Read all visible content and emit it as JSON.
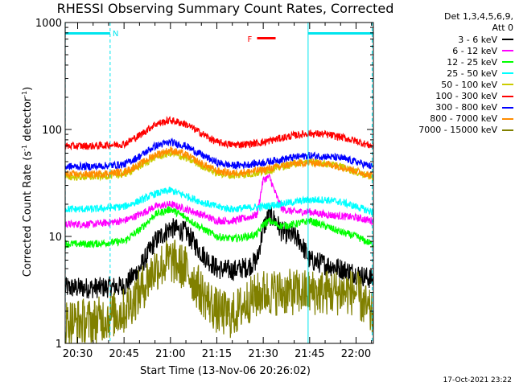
{
  "chart_data": {
    "type": "line",
    "title": "RHESSI Observing Summary Count Rates, Corrected",
    "xlabel": "Start Time (13-Nov-06 20:26:02)",
    "ylabel_main": "Corrected Count Rate (s",
    "ylabel_sup1": "-1",
    "ylabel_mid": " detector",
    "ylabel_sup2": "-1",
    "ylabel_end": ")",
    "yscale": "log",
    "ylim": [
      1,
      1000
    ],
    "xlim_minutes": [
      -4.03,
      95.6
    ],
    "x_ticks": [
      {
        "label": "20:30",
        "m": 0
      },
      {
        "label": "20:45",
        "m": 15
      },
      {
        "label": "21:00",
        "m": 30
      },
      {
        "label": "21:15",
        "m": 45
      },
      {
        "label": "21:30",
        "m": 60
      },
      {
        "label": "21:45",
        "m": 75
      },
      {
        "label": "22:00",
        "m": 90
      }
    ],
    "y_ticks": [
      {
        "label": "1",
        "v": 1
      },
      {
        "label": "10",
        "v": 10
      },
      {
        "label": "100",
        "v": 100
      },
      {
        "label": "1000",
        "v": 1000
      }
    ],
    "legend": {
      "header1": "Det 1,3,4,5,6,9,",
      "header2": "Att 0"
    },
    "series": [
      {
        "name": "3 - 6 keV",
        "color": "#000000",
        "points": [
          [
            -4,
            3.3
          ],
          [
            5,
            3.3
          ],
          [
            15,
            3.4
          ],
          [
            20,
            5
          ],
          [
            25,
            9
          ],
          [
            30,
            12
          ],
          [
            35,
            11
          ],
          [
            40,
            7
          ],
          [
            45,
            5
          ],
          [
            50,
            4.8
          ],
          [
            55,
            5.2
          ],
          [
            58,
            6
          ],
          [
            60,
            12
          ],
          [
            62,
            16
          ],
          [
            64,
            14
          ],
          [
            66,
            11
          ],
          [
            70,
            10
          ],
          [
            72,
            9
          ],
          [
            75,
            6
          ],
          [
            80,
            5.5
          ],
          [
            85,
            5
          ],
          [
            90,
            4.5
          ],
          [
            95,
            4
          ]
        ]
      },
      {
        "name": "6 - 12 keV",
        "color": "#ff00ff",
        "points": [
          [
            -4,
            13
          ],
          [
            5,
            13
          ],
          [
            15,
            14
          ],
          [
            20,
            16
          ],
          [
            25,
            19
          ],
          [
            30,
            20
          ],
          [
            35,
            18
          ],
          [
            40,
            16
          ],
          [
            45,
            14
          ],
          [
            50,
            14
          ],
          [
            55,
            15
          ],
          [
            58,
            16
          ],
          [
            60,
            34
          ],
          [
            62,
            36
          ],
          [
            64,
            25
          ],
          [
            66,
            18
          ],
          [
            70,
            17
          ],
          [
            75,
            17
          ],
          [
            80,
            16
          ],
          [
            85,
            15.5
          ],
          [
            90,
            15
          ],
          [
            95,
            14
          ]
        ]
      },
      {
        "name": "12 - 25 keV",
        "color": "#00ff00",
        "points": [
          [
            -4,
            8.5
          ],
          [
            5,
            8.5
          ],
          [
            15,
            9
          ],
          [
            20,
            11.5
          ],
          [
            25,
            16
          ],
          [
            30,
            18
          ],
          [
            35,
            15
          ],
          [
            40,
            12
          ],
          [
            45,
            10
          ],
          [
            50,
            9.5
          ],
          [
            55,
            10
          ],
          [
            58,
            10.5
          ],
          [
            60,
            13
          ],
          [
            62,
            14
          ],
          [
            64,
            13
          ],
          [
            66,
            12.5
          ],
          [
            70,
            13
          ],
          [
            75,
            14
          ],
          [
            80,
            12.5
          ],
          [
            85,
            11
          ],
          [
            90,
            10
          ],
          [
            95,
            8.5
          ]
        ]
      },
      {
        "name": "25 - 50 keV",
        "color": "#00ffff",
        "points": [
          [
            -4,
            18
          ],
          [
            5,
            18
          ],
          [
            15,
            19
          ],
          [
            20,
            21.5
          ],
          [
            25,
            25
          ],
          [
            30,
            27
          ],
          [
            35,
            24
          ],
          [
            40,
            21
          ],
          [
            45,
            19
          ],
          [
            50,
            18
          ],
          [
            55,
            18.5
          ],
          [
            60,
            19
          ],
          [
            65,
            20
          ],
          [
            70,
            21
          ],
          [
            75,
            22
          ],
          [
            80,
            22
          ],
          [
            85,
            21
          ],
          [
            90,
            19
          ],
          [
            95,
            17
          ]
        ]
      },
      {
        "name": "50 - 100 keV",
        "color": "#cccc00",
        "points": [
          [
            -4,
            36
          ],
          [
            5,
            36
          ],
          [
            15,
            38
          ],
          [
            20,
            45
          ],
          [
            25,
            55
          ],
          [
            30,
            60
          ],
          [
            35,
            54
          ],
          [
            40,
            46
          ],
          [
            45,
            39
          ],
          [
            50,
            37
          ],
          [
            55,
            38
          ],
          [
            60,
            40
          ],
          [
            65,
            44
          ],
          [
            70,
            48
          ],
          [
            75,
            50
          ],
          [
            80,
            48
          ],
          [
            85,
            45
          ],
          [
            90,
            40
          ],
          [
            95,
            36
          ]
        ]
      },
      {
        "name": "100 - 300 keV",
        "color": "#ff0000",
        "points": [
          [
            -4,
            70
          ],
          [
            5,
            70
          ],
          [
            15,
            73
          ],
          [
            20,
            88
          ],
          [
            25,
            112
          ],
          [
            30,
            122
          ],
          [
            35,
            112
          ],
          [
            40,
            92
          ],
          [
            45,
            76
          ],
          [
            50,
            72
          ],
          [
            55,
            73
          ],
          [
            60,
            76
          ],
          [
            65,
            82
          ],
          [
            70,
            88
          ],
          [
            75,
            92
          ],
          [
            80,
            90
          ],
          [
            85,
            85
          ],
          [
            90,
            78
          ],
          [
            95,
            70
          ]
        ]
      },
      {
        "name": "300 - 800 keV",
        "color": "#0000ff",
        "points": [
          [
            -4,
            45
          ],
          [
            5,
            45
          ],
          [
            15,
            47
          ],
          [
            20,
            56
          ],
          [
            25,
            70
          ],
          [
            30,
            76
          ],
          [
            35,
            70
          ],
          [
            40,
            58
          ],
          [
            45,
            49
          ],
          [
            50,
            46
          ],
          [
            55,
            47
          ],
          [
            60,
            49
          ],
          [
            65,
            52
          ],
          [
            70,
            55
          ],
          [
            75,
            57
          ],
          [
            80,
            56
          ],
          [
            85,
            54
          ],
          [
            90,
            50
          ],
          [
            95,
            45
          ]
        ]
      },
      {
        "name": "800 - 7000 keV",
        "color": "#ff8c00",
        "points": [
          [
            -4,
            38
          ],
          [
            5,
            38
          ],
          [
            15,
            40
          ],
          [
            20,
            47
          ],
          [
            25,
            58
          ],
          [
            30,
            64
          ],
          [
            35,
            58
          ],
          [
            40,
            48
          ],
          [
            45,
            41
          ],
          [
            50,
            39
          ],
          [
            55,
            40
          ],
          [
            60,
            42
          ],
          [
            65,
            45
          ],
          [
            70,
            48
          ],
          [
            75,
            49
          ],
          [
            80,
            48
          ],
          [
            85,
            45
          ],
          [
            90,
            41
          ],
          [
            95,
            37
          ]
        ]
      },
      {
        "name": "7000 - 15000 keV",
        "color": "#808000",
        "points": [
          [
            -4,
            1.6
          ],
          [
            5,
            1.6
          ],
          [
            15,
            2
          ],
          [
            20,
            3
          ],
          [
            25,
            5
          ],
          [
            30,
            6
          ],
          [
            35,
            5
          ],
          [
            40,
            3
          ],
          [
            45,
            2
          ],
          [
            50,
            1.8
          ],
          [
            55,
            2.5
          ],
          [
            60,
            3
          ],
          [
            65,
            3
          ],
          [
            70,
            3
          ],
          [
            75,
            3
          ],
          [
            80,
            3
          ],
          [
            85,
            3
          ],
          [
            90,
            3
          ],
          [
            95,
            1.8
          ]
        ]
      }
    ],
    "annotations": {
      "night_label": "N",
      "flare_label": "F",
      "night_bars": [
        [
          -4,
          10.5
        ],
        [
          74.5,
          95.6
        ]
      ],
      "flare_bar": [
        58,
        64
      ],
      "saa_lines": [
        -4,
        10.5,
        74.5,
        95.2
      ]
    }
  }
}
